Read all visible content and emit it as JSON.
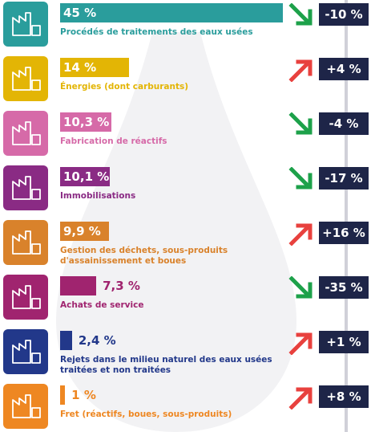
{
  "chart_data": {
    "type": "bar",
    "categories": [
      "Procédés de traitements des eaux usées",
      "Énergies (dont carburants)",
      "Fabrication de réactifs",
      "Immobilisations",
      "Gestion des déchets, sous-produits d'assainissement et boues",
      "Achats de service",
      "Rejets dans le milieu naturel des eaux usées traitées et non traitées",
      "Fret (réactifs, boues, sous-produits)"
    ],
    "values": [
      45,
      14,
      10.3,
      10.1,
      9.9,
      7.3,
      2.4,
      1
    ],
    "value_labels": [
      "45 %",
      "14 %",
      "10,3 %",
      "10,1 %",
      "9,9 %",
      "7,3 %",
      "2,4 %",
      "1 %"
    ],
    "colors": [
      "#2a9d9c",
      "#e3b505",
      "#d66aa8",
      "#8a2b84",
      "#d9822b",
      "#a0246f",
      "#22388a",
      "#ee8722"
    ],
    "changes": [
      -10,
      4,
      -4,
      -17,
      16,
      -35,
      1,
      8
    ],
    "change_labels": [
      "-10 %",
      "+4 %",
      "-4 %",
      "-17 %",
      "+16 %",
      "-35 %",
      "+1 %",
      "+8 %"
    ]
  }
}
